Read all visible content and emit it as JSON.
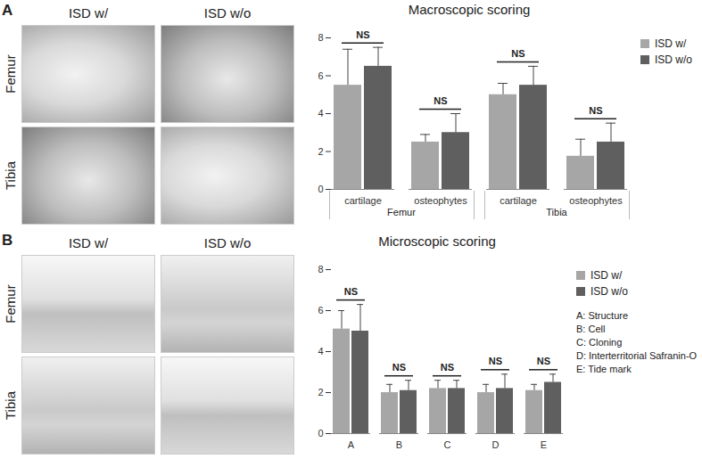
{
  "chart_data": [
    {
      "type": "bar",
      "title": "Macroscopic scoring",
      "categories": [
        "cartilage",
        "osteophytes",
        "cartilage",
        "osteophytes"
      ],
      "groups": [
        "Femur",
        "Femur",
        "Tibia",
        "Tibia"
      ],
      "series": [
        {
          "name": "ISD w/",
          "color": "#a6a6a6",
          "values": [
            5.5,
            2.5,
            5.0,
            1.75
          ],
          "errors": [
            1.9,
            0.4,
            0.6,
            0.9
          ]
        },
        {
          "name": "ISD w/o",
          "color": "#5f5f5f",
          "values": [
            6.5,
            3.0,
            5.5,
            2.5
          ],
          "errors": [
            1.0,
            1.0,
            1.0,
            1.0
          ]
        }
      ],
      "significance": [
        "NS",
        "NS",
        "NS",
        "NS"
      ],
      "ylim": [
        0,
        8
      ],
      "yticks": [
        0,
        2,
        4,
        6,
        8
      ],
      "grid": false,
      "legend": "top-right"
    },
    {
      "type": "bar",
      "title": "Microscopic scoring",
      "categories": [
        "A",
        "B",
        "C",
        "D",
        "E"
      ],
      "series": [
        {
          "name": "ISD w/",
          "color": "#a6a6a6",
          "values": [
            5.1,
            2.0,
            2.2,
            2.0,
            2.1
          ],
          "errors": [
            0.9,
            0.4,
            0.4,
            0.4,
            0.3
          ]
        },
        {
          "name": "ISD w/o",
          "color": "#5f5f5f",
          "values": [
            5.0,
            2.1,
            2.2,
            2.2,
            2.5
          ],
          "errors": [
            1.3,
            0.5,
            0.4,
            0.7,
            0.4
          ]
        }
      ],
      "significance": [
        "NS",
        "NS",
        "NS",
        "NS",
        "NS"
      ],
      "key": [
        "A: Structure",
        "B: Cell",
        "C: Cloning",
        "D: Interterritorial Safranin-O",
        "E: Tide mark"
      ],
      "ylim": [
        0,
        8
      ],
      "yticks": [
        0,
        2,
        4,
        6,
        8
      ],
      "grid": false,
      "legend": "top-right"
    }
  ],
  "figure": {
    "panels": [
      {
        "label": "A",
        "columns": [
          "ISD w/",
          "ISD w/o"
        ],
        "rows": [
          "Femur",
          "Tibia"
        ]
      },
      {
        "label": "B",
        "columns": [
          "ISD w/",
          "ISD w/o"
        ],
        "rows": [
          "Femur",
          "Tibia"
        ]
      }
    ]
  }
}
